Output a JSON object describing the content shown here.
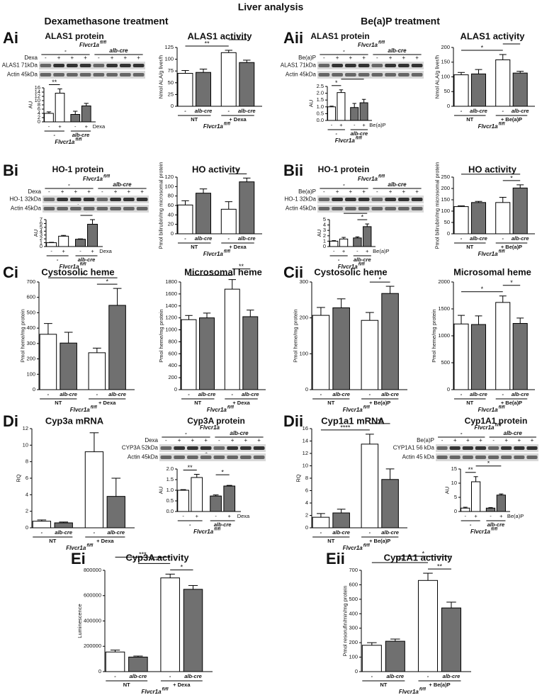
{
  "title": "Liver analysis",
  "sections": [
    "Dexamethasone treatment",
    "Be(a)P treatment"
  ],
  "chart_data": [
    {
      "type": "bar",
      "panel": "Ai",
      "title": "ALAS1 protein",
      "y_label": "AU",
      "categories": [
        "-",
        "+",
        "-",
        "+"
      ],
      "treatment": "Dexa",
      "groups": [
        "-",
        "alb-cre"
      ],
      "genotype": "Flvcr1a",
      "genotype_sup": "fl/fl",
      "values": [
        4,
        13.5,
        3.5,
        7.5
      ],
      "errors": [
        0.7,
        2,
        1.5,
        1.2
      ],
      "colors": [
        "#ffffff",
        "#ffffff",
        "#707070",
        "#707070"
      ],
      "ylim": [
        0,
        16
      ],
      "yticks": [
        0,
        2,
        4,
        6,
        8,
        10,
        12,
        14,
        16
      ],
      "significance": [
        {
          "label": "**",
          "from": 0,
          "to": 1
        },
        {
          "label": "*",
          "from": 1,
          "to": 2
        }
      ],
      "blot": {
        "genotype": "Flvcr1a",
        "genotype_sup": "fl/fl",
        "groups": [
          "-",
          "alb-cre"
        ],
        "treatment": "Dexa",
        "signs": [
          "-",
          "+",
          "+",
          "+",
          "-",
          "+",
          "+",
          "+"
        ],
        "rows": [
          "ALAS1 71kDa",
          "Actin 45kDa"
        ]
      }
    },
    {
      "type": "bar",
      "title": "ALAS1 activity",
      "y_label": "Nmol ALA/g liver/h",
      "categories": [
        "-",
        "alb-cre",
        "-",
        "alb-cre"
      ],
      "groups": [
        "NT",
        "+ Dexa"
      ],
      "genotype": "Flvcr1a",
      "genotype_sup": "fl/fl",
      "values": [
        70,
        72,
        114,
        93
      ],
      "errors": [
        6,
        7,
        5,
        5
      ],
      "colors": [
        "#ffffff",
        "#707070",
        "#ffffff",
        "#707070"
      ],
      "ylim": [
        0,
        125
      ],
      "yticks": [
        0,
        25,
        50,
        75,
        100,
        125
      ],
      "significance": [
        {
          "label": "**",
          "from": 0,
          "to": 2
        },
        {
          "label": "*",
          "from": 2,
          "to": 3
        }
      ]
    },
    {
      "type": "bar",
      "panel": "Aii",
      "title": "ALAS1 protein",
      "y_label": "AU",
      "categories": [
        "-",
        "+",
        "-",
        "+"
      ],
      "treatment": "Be(a)P",
      "groups": [
        "-",
        "alb-cre"
      ],
      "genotype": "Flvcr1a",
      "genotype_sup": "fl/fl",
      "values": [
        1.0,
        2.05,
        0.95,
        1.3
      ],
      "errors": [
        0.05,
        0.2,
        0.3,
        0.25
      ],
      "colors": [
        "#ffffff",
        "#ffffff",
        "#707070",
        "#707070"
      ],
      "ylim": [
        0,
        2.5
      ],
      "yticks": [
        {
          "value": 0,
          "label": "0.0"
        },
        0.5,
        {
          "value": 1,
          "label": "1.0"
        },
        1.5,
        {
          "value": 2,
          "label": "2.0"
        },
        2.5
      ],
      "significance": [
        {
          "label": "*",
          "from": 0,
          "to": 1
        },
        {
          "label": "*",
          "from": 1,
          "to": 3
        }
      ],
      "blot": {
        "genotype": "Flvcr1a",
        "genotype_sup": "fl/fl",
        "groups": [
          "-",
          "alb-cre"
        ],
        "treatment": "Be(a)P",
        "signs": [
          "-",
          "+",
          "+",
          "+",
          "-",
          "+",
          "+",
          "+"
        ],
        "rows": [
          "ALAS1 71kDa",
          "Actin 45kDa"
        ]
      }
    },
    {
      "type": "bar",
      "title": "ALAS1 activity",
      "y_label": "Nmol ALA/g liver/h",
      "categories": [
        "-",
        "alb-cre",
        "-",
        "alb-cre"
      ],
      "groups": [
        "NT",
        "+ Be(a)P"
      ],
      "genotype": "Flvcr1a",
      "genotype_sup": "fl/fl",
      "values": [
        107,
        110,
        158,
        113
      ],
      "errors": [
        8,
        15,
        18,
        6
      ],
      "colors": [
        "#ffffff",
        "#707070",
        "#ffffff",
        "#707070"
      ],
      "ylim": [
        0,
        200
      ],
      "yticks": [
        0,
        50,
        100,
        150,
        200
      ],
      "significance": [
        {
          "label": "*",
          "from": 0,
          "to": 2
        },
        {
          "label": "*",
          "from": 2,
          "to": 3
        }
      ]
    },
    {
      "type": "bar",
      "panel": "Bi",
      "title": "HO-1 protein",
      "y_label": "AU",
      "categories": [
        "-",
        "+",
        "-",
        "+"
      ],
      "treatment": "Dexa",
      "groups": [
        "-",
        "alb-cre"
      ],
      "genotype": "Flvcr1a",
      "genotype_sup": "fl/fl",
      "values": [
        1,
        2.7,
        1.9,
        5.8
      ],
      "errors": [
        0.1,
        0.2,
        0.1,
        1.2
      ],
      "colors": [
        "#ffffff",
        "#ffffff",
        "#707070",
        "#707070"
      ],
      "ylim": [
        0,
        7
      ],
      "yticks": [
        0,
        1,
        2,
        3,
        4,
        5,
        6,
        7
      ],
      "significance": [
        {
          "label": "*",
          "from": 2,
          "to": 3
        },
        {
          "label": "*",
          "from": 1,
          "to": 3
        }
      ],
      "blot": {
        "genotype": "Flvcr1a",
        "genotype_sup": "fl/fl",
        "groups": [
          "-",
          "alb-cre"
        ],
        "treatment": "Dexa",
        "signs": [
          "-",
          "+",
          "+",
          "+",
          "-",
          "+",
          "+",
          "+"
        ],
        "rows": [
          "HO-1 32kDa",
          "Actin 45kDa"
        ]
      }
    },
    {
      "type": "bar",
      "title": "HO activity",
      "y_label": "Pmol bilirubin/mg microsomal protein",
      "categories": [
        "-",
        "alb-cre",
        "-",
        "alb-cre"
      ],
      "groups": [
        "NT",
        "+ Dexa"
      ],
      "genotype": "Flvcr1a",
      "genotype_sup": "fl/fl",
      "values": [
        61,
        86,
        52,
        110
      ],
      "errors": [
        9,
        9,
        16,
        8
      ],
      "colors": [
        "#ffffff",
        "#707070",
        "#ffffff",
        "#707070"
      ],
      "ylim": [
        0,
        120
      ],
      "yticks": [
        0,
        20,
        40,
        60,
        80,
        100,
        120
      ],
      "significance": [
        {
          "label": "*",
          "from": 2,
          "to": 3
        }
      ]
    },
    {
      "type": "bar",
      "panel": "Bii",
      "title": "HO-1 protein",
      "y_label": "AU",
      "categories": [
        "-",
        "+",
        "-",
        "+"
      ],
      "treatment": "Be(a)P",
      "groups": [
        "-",
        "alb-cre"
      ],
      "genotype": "Flvcr1a",
      "genotype_sup": "fl/fl",
      "values": [
        1,
        1.4,
        1.6,
        3.7
      ],
      "errors": [
        0.1,
        0.3,
        0.2,
        0.5
      ],
      "colors": [
        "#ffffff",
        "#ffffff",
        "#707070",
        "#707070"
      ],
      "ylim": [
        0,
        5
      ],
      "yticks": [
        0,
        1,
        2,
        3,
        4,
        5
      ],
      "significance": [
        {
          "label": "*",
          "from": 2,
          "to": 3
        },
        {
          "label": "*",
          "from": 1,
          "to": 3
        }
      ],
      "blot": {
        "genotype": "Flvcr1a",
        "genotype_sup": "fl/fl",
        "groups": [
          "-",
          "alb-cre"
        ],
        "treatment": "Be(a)P",
        "signs": [
          "-",
          "+",
          "+",
          "+",
          "-",
          "+",
          "+",
          "+"
        ],
        "rows": [
          "HO-1 32kDa",
          "Actin 45kDa"
        ]
      }
    },
    {
      "type": "bar",
      "title": "HO activity",
      "y_label": "Pmol bilirubin/mg microsomal protein",
      "categories": [
        "-",
        "alb-cre",
        "-",
        "alb-cre"
      ],
      "groups": [
        "NT",
        "+ Be(a)P"
      ],
      "genotype": "Flvcr1a",
      "genotype_sup": "fl/fl",
      "values": [
        120,
        138,
        138,
        202
      ],
      "errors": [
        3,
        5,
        23,
        14
      ],
      "colors": [
        "#ffffff",
        "#707070",
        "#ffffff",
        "#707070"
      ],
      "ylim": [
        0,
        250
      ],
      "yticks": [
        0,
        50,
        100,
        150,
        200,
        250
      ],
      "significance": [
        {
          "label": "*",
          "from": 2,
          "to": 3
        },
        {
          "label": "*",
          "from": 0,
          "to": 3
        }
      ]
    },
    {
      "type": "bar",
      "panel": "Ci",
      "title": "Cystosolic heme",
      "y_label": "Pmol heme/mg protein",
      "categories": [
        "-",
        "alb-cre",
        "-",
        "alb-cre"
      ],
      "groups": [
        "NT",
        "+ Dexa"
      ],
      "genotype": "Flvcr1a",
      "genotype_sup": "fl/fl",
      "values": [
        360,
        303,
        240,
        548
      ],
      "errors": [
        70,
        70,
        30,
        110
      ],
      "colors": [
        "#ffffff",
        "#707070",
        "#ffffff",
        "#707070"
      ],
      "ylim": [
        0,
        700
      ],
      "yticks": [
        0,
        100,
        200,
        300,
        400,
        500,
        600,
        700
      ],
      "significance": [
        {
          "label": "*",
          "from": 2,
          "to": 3
        },
        {
          "label": "*",
          "from": 0,
          "to": 3
        }
      ]
    },
    {
      "type": "bar",
      "title": "Microsomal heme",
      "y_label": "Pmol heme/mg protein",
      "categories": [
        "-",
        "alb-cre",
        "-",
        "alb-cre"
      ],
      "groups": [
        "NT",
        "+ Dexa"
      ],
      "genotype": "Flvcr1a",
      "genotype_sup": "fl/fl",
      "values": [
        1170,
        1200,
        1680,
        1220
      ],
      "errors": [
        70,
        80,
        160,
        110
      ],
      "colors": [
        "#ffffff",
        "#707070",
        "#ffffff",
        "#707070"
      ],
      "ylim": [
        0,
        1800
      ],
      "yticks": [
        0,
        200,
        400,
        600,
        800,
        1000,
        1200,
        1400,
        1600,
        1800
      ],
      "significance": [
        {
          "label": "*",
          "from": 0,
          "to": 2
        },
        {
          "label": "**",
          "from": 2,
          "to": 3
        }
      ]
    },
    {
      "type": "bar",
      "panel": "Cii",
      "title": "Cystosolic heme",
      "y_label": "Pmol heme/mg protein",
      "categories": [
        "-",
        "alb-cre",
        "-",
        "alb-cre"
      ],
      "groups": [
        "NT",
        "+ Be(a)P"
      ],
      "genotype": "Flvcr1a",
      "genotype_sup": "fl/fl",
      "values": [
        207,
        228,
        193,
        268
      ],
      "errors": [
        22,
        25,
        22,
        20
      ],
      "colors": [
        "#ffffff",
        "#707070",
        "#ffffff",
        "#707070"
      ],
      "ylim": [
        0,
        300
      ],
      "yticks": [
        0,
        100,
        200,
        300
      ],
      "significance": [
        {
          "label": "*",
          "from": 2,
          "to": 3
        }
      ]
    },
    {
      "type": "bar",
      "title": "Microsomal heme",
      "y_label": "Pmol heme/mg protein",
      "categories": [
        "-",
        "alb-cre",
        "-",
        "alb-cre"
      ],
      "groups": [
        "NT",
        "+ Be(a)P"
      ],
      "genotype": "Flvcr1a",
      "genotype_sup": "fl/fl",
      "values": [
        1220,
        1210,
        1620,
        1230
      ],
      "errors": [
        160,
        160,
        120,
        100
      ],
      "colors": [
        "#ffffff",
        "#707070",
        "#ffffff",
        "#707070"
      ],
      "ylim": [
        0,
        2000
      ],
      "yticks": [
        0,
        500,
        1000,
        1500,
        2000
      ],
      "significance": [
        {
          "label": "*",
          "from": 0,
          "to": 2
        },
        {
          "label": "*",
          "from": 2,
          "to": 3
        }
      ]
    },
    {
      "type": "bar",
      "panel": "Di",
      "title": "Cyp3a mRNA",
      "y_label": "RQ",
      "categories": [
        "-",
        "alb-cre",
        "-",
        "alb-cre"
      ],
      "groups": [
        "NT",
        "+ Dexa"
      ],
      "genotype": "Flvcr1a",
      "genotype_sup": "fl/fl",
      "values": [
        0.8,
        0.6,
        9.2,
        3.8
      ],
      "errors": [
        0.15,
        0.1,
        2.3,
        2.2
      ],
      "colors": [
        "#ffffff",
        "#707070",
        "#ffffff",
        "#707070"
      ],
      "ylim": [
        0,
        12
      ],
      "yticks": [
        0,
        2,
        4,
        6,
        8,
        10,
        12
      ],
      "significance": []
    },
    {
      "type": "bar",
      "title": "Cyp3A protein",
      "y_label": "AU",
      "categories": [
        "-",
        "+",
        "-",
        "+"
      ],
      "treatment": "Dexa",
      "groups": [
        "-",
        "alb-cre"
      ],
      "genotype": "Flvcr1a",
      "genotype_sup": "fl/fl",
      "values": [
        1.0,
        1.6,
        0.73,
        1.2
      ],
      "errors": [
        0.03,
        0.15,
        0.05,
        0.03
      ],
      "colors": [
        "#ffffff",
        "#ffffff",
        "#707070",
        "#707070"
      ],
      "ylim": [
        0,
        2
      ],
      "yticks": [
        {
          "value": 0,
          "label": "0.0"
        },
        0.5,
        {
          "value": 1,
          "label": "1.0"
        },
        1.5,
        {
          "value": 2,
          "label": "2.0"
        }
      ],
      "significance": [
        {
          "label": "**",
          "from": 0,
          "to": 1
        },
        {
          "label": "*",
          "from": 2,
          "to": 3
        },
        {
          "label": "*",
          "from": 1,
          "to": 2
        }
      ],
      "blot": {
        "genotype": "Flvcr1a",
        "groups": [
          "-",
          "alb-cre"
        ],
        "treatment": "Dexa",
        "signs": [
          "-",
          "+",
          "+",
          "+",
          "-",
          "+",
          "+",
          "+"
        ],
        "rows": [
          "CYP3A 52kDa",
          "Actin 45kDa"
        ]
      }
    },
    {
      "type": "bar",
      "panel": "Dii",
      "title": "Cyp1a1 mRNA",
      "y_label": "RQ",
      "categories": [
        "-",
        "alb-cre",
        "-",
        "alb-cre"
      ],
      "groups": [
        "NT",
        "+ Be(a)P"
      ],
      "genotype": "Flvcr1a",
      "genotype_sup": "fl/fl",
      "values": [
        1.7,
        2.4,
        13.5,
        7.8
      ],
      "errors": [
        0.6,
        0.6,
        1.6,
        1.7
      ],
      "colors": [
        "#ffffff",
        "#707070",
        "#ffffff",
        "#707070"
      ],
      "ylim": [
        0,
        16
      ],
      "yticks": [
        0,
        2,
        4,
        6,
        8,
        10,
        12,
        14,
        16
      ],
      "significance": [
        {
          "label": "****",
          "from": 0,
          "to": 2
        },
        {
          "label": "**",
          "from": 2,
          "to": 3
        }
      ]
    },
    {
      "type": "bar",
      "title": "Cyp1A1 protein",
      "y_label": "AU",
      "categories": [
        "-",
        "+",
        "-",
        "+"
      ],
      "treatment": "Be(a)P",
      "groups": [
        "-",
        "alb-cre"
      ],
      "genotype": "Flvcr1a",
      "genotype_sup": "fl/fl",
      "values": [
        1.2,
        10.5,
        1.2,
        5.8
      ],
      "errors": [
        0.3,
        1.8,
        0.2,
        0.4
      ],
      "colors": [
        "#ffffff",
        "#ffffff",
        "#707070",
        "#707070"
      ],
      "ylim": [
        0,
        15
      ],
      "yticks": [
        0,
        5,
        10,
        15
      ],
      "significance": [
        {
          "label": "**",
          "from": 0,
          "to": 1
        },
        {
          "label": "*",
          "from": 1,
          "to": 3
        }
      ],
      "blot": {
        "genotype": "Flvcr1a",
        "genotype_sup": "fl/fl",
        "groups": [
          "-",
          "alb-cre"
        ],
        "treatment": "Be(a)P",
        "signs": [
          "-",
          "+",
          "+",
          "+",
          "-",
          "+",
          "+",
          "+"
        ],
        "rows": [
          "CYP1A1 56 kDa",
          "Actin 45 kDa"
        ]
      }
    },
    {
      "type": "bar",
      "panel": "Ei",
      "title": "Cyp3A activity",
      "y_label": "Luminescence",
      "categories": [
        "-",
        "alb-cre",
        "-",
        "alb-cre"
      ],
      "groups": [
        "NT",
        "+ Dexa"
      ],
      "genotype": "Flvcr1a",
      "genotype_sup": "fl/fl",
      "values": [
        155000,
        115000,
        740000,
        650000
      ],
      "errors": [
        15000,
        8000,
        30000,
        30000
      ],
      "colors": [
        "#ffffff",
        "#707070",
        "#ffffff",
        "#707070"
      ],
      "ylim": [
        0,
        800000
      ],
      "yticks": [
        0,
        200000,
        400000,
        600000,
        800000
      ],
      "significance": [
        {
          "label": "*",
          "from": 2,
          "to": 3
        },
        {
          "label": "***",
          "from": 1,
          "to": 2
        },
        {
          "label": "***",
          "from": 0,
          "to": 2
        }
      ]
    },
    {
      "type": "bar",
      "panel": "Eii",
      "title": "Cyp1A1 activity",
      "y_label": "Pmol resorufin/min/mg protein",
      "categories": [
        "-",
        "alb-cre",
        "-",
        "alb-cre"
      ],
      "groups": [
        "NT",
        "+ Be(a)P"
      ],
      "genotype": "Flvcr1a",
      "genotype_sup": "fl/fl",
      "values": [
        182,
        210,
        630,
        440
      ],
      "errors": [
        18,
        15,
        50,
        40
      ],
      "colors": [
        "#ffffff",
        "#707070",
        "#ffffff",
        "#707070"
      ],
      "ylim": [
        0,
        700
      ],
      "yticks": [
        0,
        100,
        200,
        300,
        400,
        500,
        600,
        700
      ],
      "significance": [
        {
          "label": "**",
          "from": 2,
          "to": 3
        },
        {
          "label": "***",
          "from": 0,
          "to": 2
        },
        {
          "label": "*",
          "from": 1,
          "to": 3
        }
      ]
    }
  ]
}
